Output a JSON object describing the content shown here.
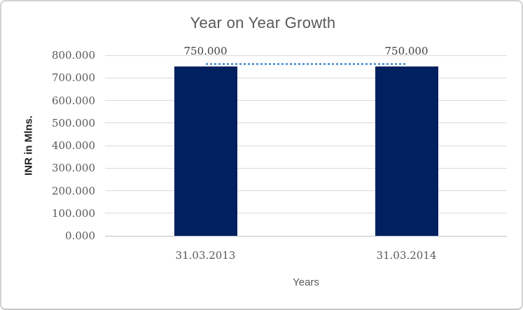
{
  "chart_data": {
    "type": "bar",
    "title": "Year on Year Growth",
    "xlabel": "Years",
    "ylabel": "INR in Mlns.",
    "categories": [
      "31.03.2013",
      "31.03.2014"
    ],
    "values": [
      750,
      750
    ],
    "data_labels": [
      "750.000",
      "750.000"
    ],
    "ylim": [
      0,
      800
    ],
    "ytick_step": 100,
    "ytick_labels": [
      "800.000",
      "700.000",
      "600.000",
      "500.000",
      "400.000",
      "300.000",
      "200.000",
      "100.000",
      "0.000"
    ],
    "grid": true,
    "legend_position": "none",
    "bar_color": "#002060",
    "overlay_line": {
      "style": "dotted",
      "color": "#5b9bd5",
      "description": "dotted connector between the two bar tops at value 750",
      "x": [
        "31.03.2013",
        "31.03.2014"
      ],
      "y": [
        750,
        750
      ]
    },
    "gridline_color": "#dadada",
    "axis_line_color": "#bfbfbf",
    "title_color": "#595959",
    "tick_label_color": "#595959",
    "data_label_color": "#404040"
  }
}
